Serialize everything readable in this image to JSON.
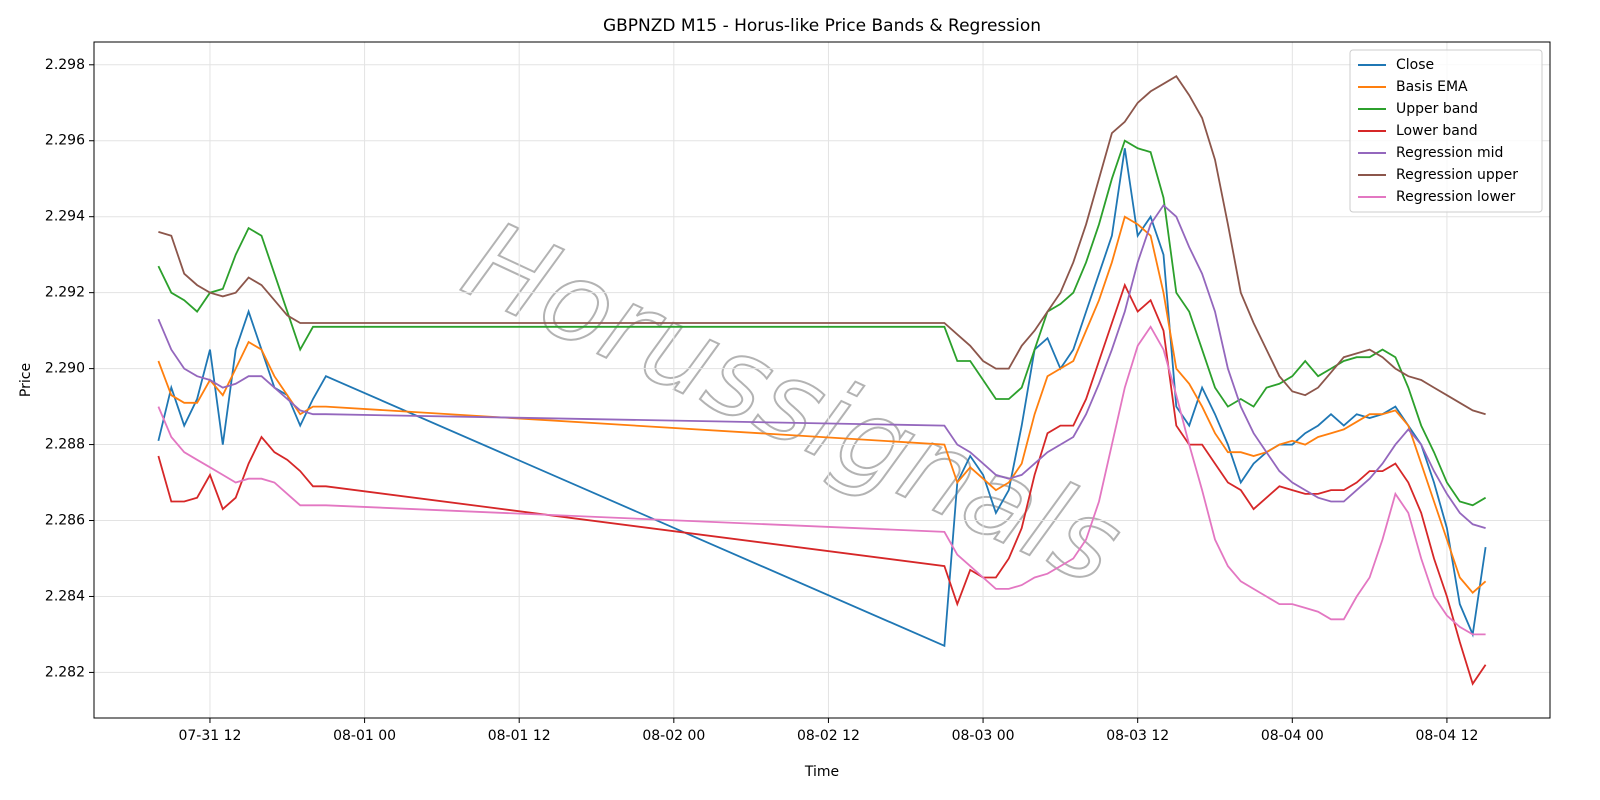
{
  "chart_data": {
    "type": "line",
    "title": "GBPNZD M15 - Horus-like Price Bands & Regression",
    "x_label": "Time",
    "y_label": "Price",
    "watermark": "Horussignals",
    "x": [
      "07-31 08",
      "07-31 09",
      "07-31 10",
      "07-31 11",
      "07-31 12",
      "07-31 13",
      "07-31 14",
      "07-31 15",
      "07-31 16",
      "07-31 17",
      "07-31 18",
      "07-31 19",
      "07-31 20",
      "07-31 21",
      "08-02 21",
      "08-02 22",
      "08-02 23",
      "08-03 00",
      "08-03 01",
      "08-03 02",
      "08-03 03",
      "08-03 04",
      "08-03 05",
      "08-03 06",
      "08-03 07",
      "08-03 08",
      "08-03 09",
      "08-03 10",
      "08-03 11",
      "08-03 12",
      "08-03 13",
      "08-03 14",
      "08-03 15",
      "08-03 16",
      "08-03 17",
      "08-03 18",
      "08-03 19",
      "08-03 20",
      "08-03 21",
      "08-03 22",
      "08-03 23",
      "08-04 00",
      "08-04 01",
      "08-04 02",
      "08-04 03",
      "08-04 04",
      "08-04 05",
      "08-04 06",
      "08-04 07",
      "08-04 08",
      "08-04 09",
      "08-04 10",
      "08-04 11",
      "08-04 12",
      "08-04 13",
      "08-04 14",
      "08-04 15"
    ],
    "xlim": [
      "07-31 03",
      "08-04 20"
    ],
    "xticks": [
      "07-31 12",
      "08-01 00",
      "08-01 12",
      "08-02 00",
      "08-02 12",
      "08-03 00",
      "08-03 12",
      "08-04 00",
      "08-04 12"
    ],
    "ylim": [
      2.2808,
      2.2986
    ],
    "yticks": [
      2.282,
      2.284,
      2.286,
      2.288,
      {
        "value": 2.29,
        "label": "2.290"
      },
      2.292,
      2.294,
      2.296,
      2.298
    ],
    "grid": true,
    "legend": "upper right",
    "series": [
      {
        "name": "Close",
        "color": "#1f77b4",
        "values": [
          2.2881,
          2.2895,
          2.2885,
          2.2892,
          2.2905,
          2.288,
          2.2905,
          2.2915,
          2.2905,
          2.2895,
          2.2893,
          2.2885,
          2.2892,
          2.2898,
          2.2827,
          2.287,
          2.2877,
          2.2872,
          2.2862,
          2.2868,
          2.2885,
          2.2905,
          2.2908,
          2.29,
          2.2905,
          2.2915,
          2.2925,
          2.2935,
          2.2958,
          2.2935,
          2.294,
          2.293,
          2.289,
          2.2885,
          2.2895,
          2.2888,
          2.288,
          2.287,
          2.2875,
          2.2878,
          2.288,
          2.288,
          2.2883,
          2.2885,
          2.2888,
          2.2885,
          2.2888,
          2.2887,
          2.2888,
          2.289,
          2.2885,
          2.288,
          2.287,
          2.2858,
          2.2838,
          2.283,
          2.2853
        ]
      },
      {
        "name": "Basis EMA",
        "color": "#ff7f0e",
        "values": [
          2.2902,
          2.2893,
          2.2891,
          2.2891,
          2.2897,
          2.2893,
          2.29,
          2.2907,
          2.2905,
          2.2898,
          2.2893,
          2.2888,
          2.289,
          2.289,
          2.288,
          2.287,
          2.2874,
          2.2871,
          2.2868,
          2.287,
          2.2875,
          2.2888,
          2.2898,
          2.29,
          2.2902,
          2.291,
          2.2918,
          2.2928,
          2.294,
          2.2938,
          2.2935,
          2.292,
          2.29,
          2.2896,
          2.289,
          2.2883,
          2.2878,
          2.2878,
          2.2877,
          2.2878,
          2.288,
          2.2881,
          2.288,
          2.2882,
          2.2883,
          2.2884,
          2.2886,
          2.2888,
          2.2888,
          2.2889,
          2.2885,
          2.2875,
          2.2865,
          2.2855,
          2.2845,
          2.2841,
          2.2844
        ]
      },
      {
        "name": "Upper band",
        "color": "#2ca02c",
        "values": [
          2.2927,
          2.292,
          2.2918,
          2.2915,
          2.292,
          2.2921,
          2.293,
          2.2937,
          2.2935,
          2.2925,
          2.2915,
          2.2905,
          2.2911,
          2.2911,
          2.2911,
          2.2902,
          2.2902,
          2.2897,
          2.2892,
          2.2892,
          2.2895,
          2.2905,
          2.2915,
          2.2917,
          2.292,
          2.2928,
          2.2938,
          2.295,
          2.296,
          2.2958,
          2.2957,
          2.2945,
          2.292,
          2.2915,
          2.2905,
          2.2895,
          2.289,
          2.2892,
          2.289,
          2.2895,
          2.2896,
          2.2898,
          2.2902,
          2.2898,
          2.29,
          2.2902,
          2.2903,
          2.2903,
          2.2905,
          2.2903,
          2.2895,
          2.2885,
          2.2878,
          2.287,
          2.2865,
          2.2864,
          2.2866
        ]
      },
      {
        "name": "Lower band",
        "color": "#d62728",
        "values": [
          2.2877,
          2.2865,
          2.2865,
          2.2866,
          2.2872,
          2.2863,
          2.2866,
          2.2875,
          2.2882,
          2.2878,
          2.2876,
          2.2873,
          2.2869,
          2.2869,
          2.2848,
          2.2838,
          2.2847,
          2.2845,
          2.2845,
          2.285,
          2.2858,
          2.2872,
          2.2883,
          2.2885,
          2.2885,
          2.2892,
          2.2902,
          2.2912,
          2.2922,
          2.2915,
          2.2918,
          2.291,
          2.2885,
          2.288,
          2.288,
          2.2875,
          2.287,
          2.2868,
          2.2863,
          2.2866,
          2.2869,
          2.2868,
          2.2867,
          2.2867,
          2.2868,
          2.2868,
          2.287,
          2.2873,
          2.2873,
          2.2875,
          2.287,
          2.2862,
          2.285,
          2.284,
          2.2828,
          2.2817,
          2.2822
        ]
      },
      {
        "name": "Regression mid",
        "color": "#9467bd",
        "values": [
          2.2913,
          2.2905,
          2.29,
          2.2898,
          2.2897,
          2.2895,
          2.2896,
          2.2898,
          2.2898,
          2.2895,
          2.2892,
          2.2889,
          2.2888,
          2.2888,
          2.2885,
          2.288,
          2.2878,
          2.2875,
          2.2872,
          2.2871,
          2.2872,
          2.2875,
          2.2878,
          2.288,
          2.2882,
          2.2888,
          2.2896,
          2.2905,
          2.2915,
          2.2928,
          2.2938,
          2.2943,
          2.294,
          2.2932,
          2.2925,
          2.2915,
          2.29,
          2.289,
          2.2883,
          2.2878,
          2.2873,
          2.287,
          2.2868,
          2.2866,
          2.2865,
          2.2865,
          2.2868,
          2.2871,
          2.2875,
          2.288,
          2.2884,
          2.288,
          2.2873,
          2.2867,
          2.2862,
          2.2859,
          2.2858
        ]
      },
      {
        "name": "Regression upper",
        "color": "#8c564b",
        "values": [
          2.2936,
          2.2935,
          2.2925,
          2.2922,
          2.292,
          2.2919,
          2.292,
          2.2924,
          2.2922,
          2.2918,
          2.2914,
          2.2912,
          2.2912,
          2.2912,
          2.2912,
          2.2909,
          2.2906,
          2.2902,
          2.29,
          2.29,
          2.2906,
          2.291,
          2.2915,
          2.292,
          2.2928,
          2.2938,
          2.295,
          2.2962,
          2.2965,
          2.297,
          2.2973,
          2.2975,
          2.2977,
          2.2972,
          2.2966,
          2.2955,
          2.2938,
          2.292,
          2.2912,
          2.2905,
          2.2898,
          2.2894,
          2.2893,
          2.2895,
          2.2899,
          2.2903,
          2.2904,
          2.2905,
          2.2903,
          2.29,
          2.2898,
          2.2897,
          2.2895,
          2.2893,
          2.2891,
          2.2889,
          2.2888
        ]
      },
      {
        "name": "Regression lower",
        "color": "#e377c2",
        "values": [
          2.289,
          2.2882,
          2.2878,
          2.2876,
          2.2874,
          2.2872,
          2.287,
          2.2871,
          2.2871,
          2.287,
          2.2867,
          2.2864,
          2.2864,
          2.2864,
          2.2857,
          2.2851,
          2.2848,
          2.2845,
          2.2842,
          2.2842,
          2.2843,
          2.2845,
          2.2846,
          2.2848,
          2.285,
          2.2855,
          2.2865,
          2.288,
          2.2895,
          2.2906,
          2.2911,
          2.2905,
          2.2893,
          2.288,
          2.2868,
          2.2855,
          2.2848,
          2.2844,
          2.2842,
          2.284,
          2.2838,
          2.2838,
          2.2837,
          2.2836,
          2.2834,
          2.2834,
          2.284,
          2.2845,
          2.2855,
          2.2867,
          2.2862,
          2.285,
          2.284,
          2.2835,
          2.2832,
          2.283,
          2.283
        ]
      }
    ]
  }
}
